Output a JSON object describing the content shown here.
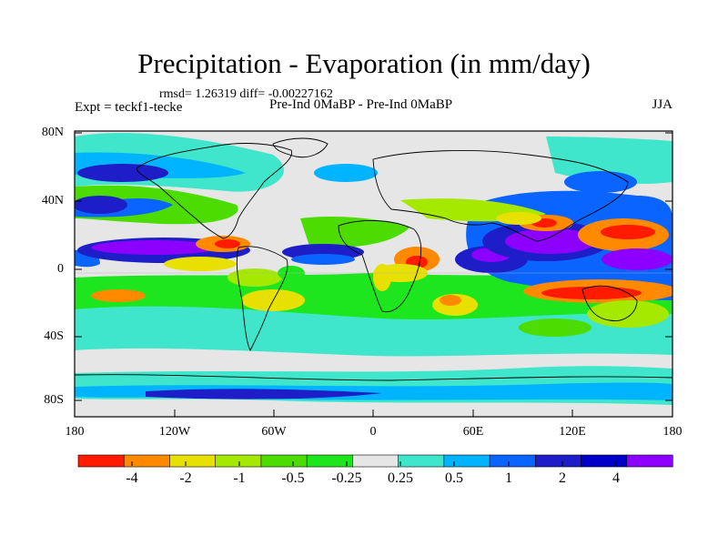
{
  "title": "Precipitation - Evaporation (in mm/day)",
  "stats": "rmsd= 1.26319 diff= -0.00227162",
  "left_label": "Expt = teckf1-tecke",
  "center_label": "Pre-Ind 0MaBP - Pre-Ind 0MaBP",
  "right_label": "JJA",
  "y_ticks": [
    "80N",
    "40N",
    "0",
    "40S",
    "80S"
  ],
  "x_ticks": [
    "180",
    "120W",
    "60W",
    "0",
    "60E",
    "120E",
    "180"
  ],
  "colorbar": {
    "colors": [
      "#ff1a00",
      "#ff8a00",
      "#e8e000",
      "#a5e800",
      "#4cdc00",
      "#1ee61e",
      "#e6e6e6",
      "#3fe6cc",
      "#00b4ff",
      "#0a64ff",
      "#1e1ec8",
      "#0000c8",
      "#8c00ff"
    ],
    "labels": [
      "-4",
      "-2",
      "-1",
      "-0.5",
      "-0.25",
      "0.25",
      "0.5",
      "1",
      "2",
      "4"
    ]
  },
  "chart_data": {
    "type": "heatmap",
    "title": "Precipitation - Evaporation (in mm/day)",
    "x_axis": {
      "range": [
        -180,
        180
      ],
      "ticks": [
        "180",
        "120W",
        "60W",
        "0",
        "60E",
        "120E",
        "180"
      ]
    },
    "y_axis": {
      "range": [
        -90,
        90
      ],
      "ticks": [
        "80N",
        "40N",
        "0",
        "40S",
        "80S"
      ]
    },
    "levels": [
      -4,
      -2,
      -1,
      -0.5,
      -0.25,
      0.25,
      0.5,
      1,
      2,
      4
    ],
    "features": [
      {
        "lon": -140,
        "lat": 8,
        "value": 5,
        "rx": 45,
        "ry": 7
      },
      {
        "lon": -95,
        "lat": 8,
        "value": -4,
        "rx": 15,
        "ry": 5
      },
      {
        "lon": -40,
        "lat": 5,
        "value": 2.5,
        "rx": 22,
        "ry": 4
      },
      {
        "lon": 105,
        "lat": 10,
        "value": 5,
        "rx": 45,
        "ry": 12
      },
      {
        "lon": 150,
        "lat": 15,
        "value": -4.5,
        "rx": 25,
        "ry": 7
      },
      {
        "lon": 140,
        "lat": -20,
        "value": -4.5,
        "rx": 35,
        "ry": 7
      },
      {
        "lon": 20,
        "lat": 3,
        "value": -3,
        "rx": 15,
        "ry": 6
      },
      {
        "lon": 60,
        "lat": 0,
        "value": 3,
        "rx": 25,
        "ry": 9
      },
      {
        "lon": -160,
        "lat": 55,
        "value": 2,
        "rx": 40,
        "ry": 12
      },
      {
        "lon": -160,
        "lat": -30,
        "value": -3,
        "rx": 20,
        "ry": 5
      },
      {
        "lon": 0,
        "lat": 62,
        "value": 1.5,
        "rx": 30,
        "ry": 10
      },
      {
        "lon": 0,
        "lat": -50,
        "value": 1,
        "rx": 90,
        "ry": 10
      }
    ]
  }
}
